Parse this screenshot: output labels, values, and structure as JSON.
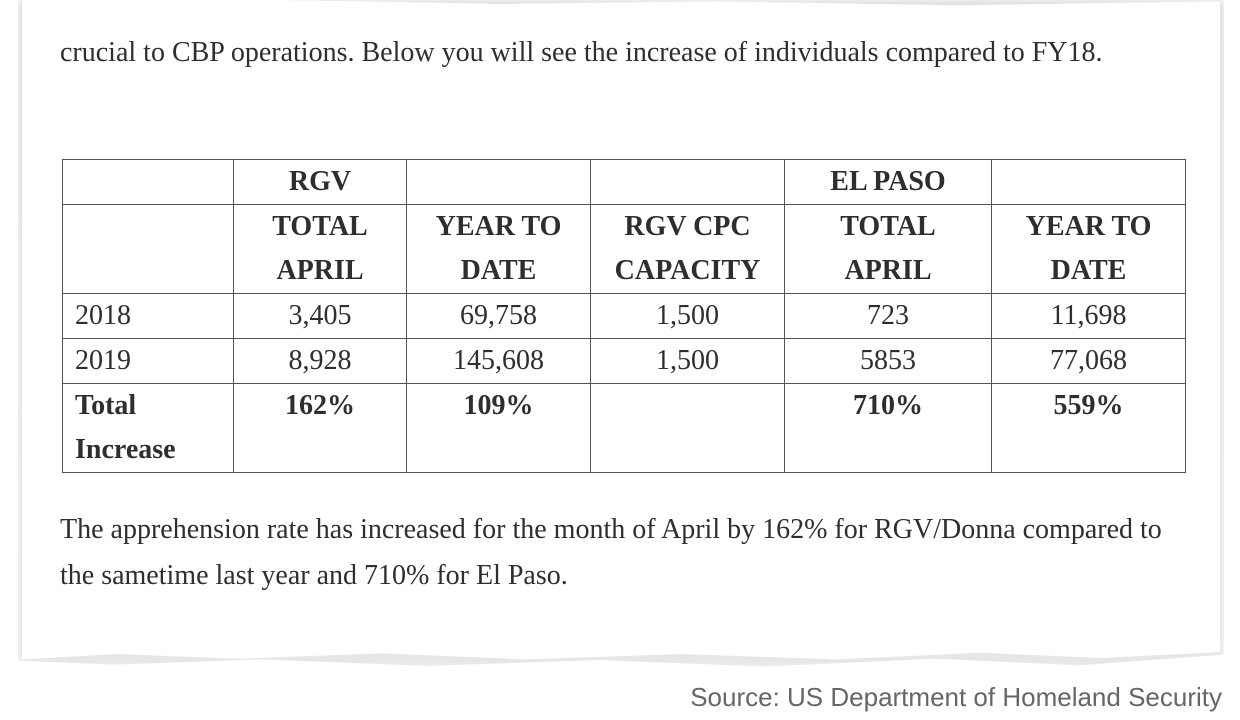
{
  "intro_text": "crucial to CBP operations.  Below you will see the increase of individuals compared to FY18.",
  "table": {
    "group_headers": [
      "",
      "RGV",
      "",
      "",
      "EL PASO",
      ""
    ],
    "column_headers": [
      "",
      "TOTAL APRIL",
      "YEAR TO DATE",
      "RGV CPC CAPACITY",
      "TOTAL APRIL",
      "YEAR TO DATE"
    ],
    "rows": [
      {
        "label": "2018",
        "cells": [
          "3,405",
          "69,758",
          "1,500",
          "723",
          "11,698"
        ]
      },
      {
        "label": "2019",
        "cells": [
          "8,928",
          "145,608",
          "1,500",
          "5853",
          "77,068"
        ]
      }
    ],
    "total_row": {
      "label": "Total Increase",
      "cells": [
        "162%",
        "109%",
        "",
        "710%",
        "559%"
      ]
    }
  },
  "summary_text": "The apprehension rate has increased for the month of April by 162% for RGV/Donna compared to the sametime last year and 710% for El Paso.",
  "source": "Source: US Department of Homeland Security"
}
